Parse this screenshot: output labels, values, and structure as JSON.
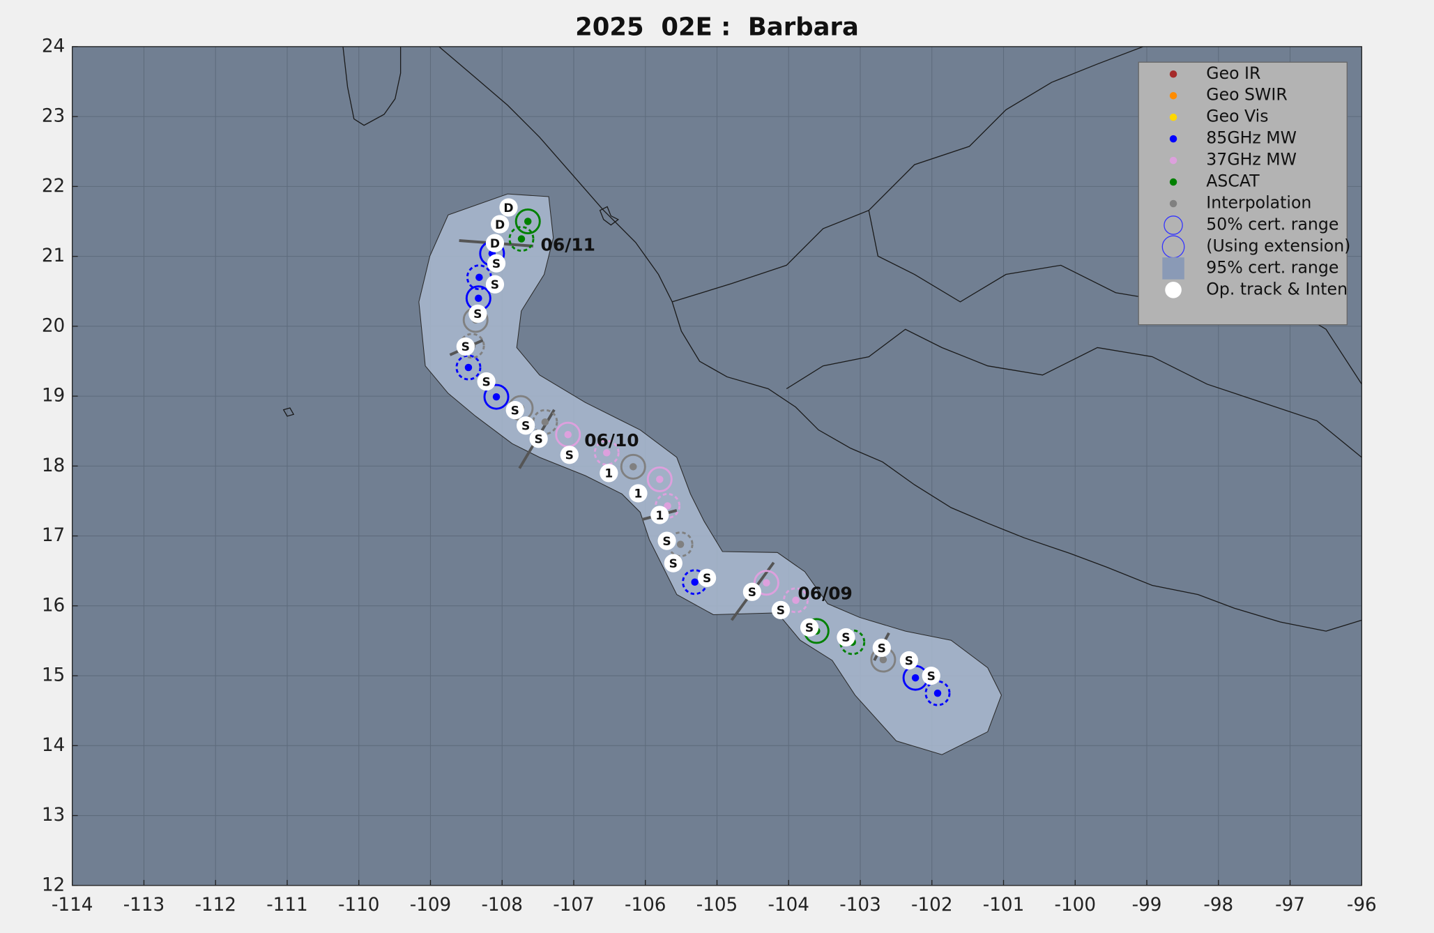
{
  "chart_data": {
    "type": "scatter",
    "title": "2025  02E :  Barbara",
    "xlim": [
      -114,
      -96
    ],
    "ylim": [
      12,
      24
    ],
    "xticks": [
      -114,
      -113,
      -112,
      -111,
      -110,
      -109,
      -108,
      -107,
      -106,
      -105,
      -104,
      -103,
      -102,
      -101,
      -100,
      -99,
      -98,
      -97,
      -96
    ],
    "yticks": [
      12,
      13,
      14,
      15,
      16,
      17,
      18,
      19,
      20,
      21,
      22,
      23,
      24
    ],
    "grid": true,
    "legend": "upper right",
    "series": [
      {
        "name": "Geo IR",
        "color": "#a52a2a",
        "x": [],
        "y": []
      },
      {
        "name": "Geo SWIR",
        "color": "#ff8c00",
        "x": [],
        "y": []
      },
      {
        "name": "Geo Vis",
        "color": "#ffd700",
        "x": [],
        "y": []
      },
      {
        "name": "85GHz MW",
        "color": "#0000ff",
        "x": [
          -108.14,
          -108.32,
          -108.33,
          -108.47,
          -108.08,
          -105.31,
          -102.23,
          -101.92
        ],
        "y": [
          21.04,
          20.7,
          20.4,
          19.41,
          18.99,
          16.34,
          14.97,
          14.75
        ]
      },
      {
        "name": "37GHz MW",
        "color": "#dda0dd",
        "x": [
          -107.08,
          -106.54,
          -105.8,
          -105.69,
          -104.31,
          -103.9
        ],
        "y": [
          18.45,
          18.19,
          17.81,
          17.43,
          16.33,
          16.08
        ]
      },
      {
        "name": "ASCAT",
        "color": "#008000",
        "x": [
          -107.64,
          -107.73,
          -103.61,
          -103.11
        ],
        "y": [
          21.5,
          21.25,
          15.64,
          15.48
        ]
      },
      {
        "name": "Interpolation",
        "color": "#808080",
        "x": [
          -108.37,
          -108.42,
          -107.74,
          -107.4,
          -106.17,
          -105.51,
          -102.68
        ],
        "y": [
          20.09,
          19.72,
          18.83,
          18.63,
          17.99,
          16.88,
          15.23
        ]
      }
    ],
    "legend_extra": [
      "50% cert. range",
      "(Using extension)",
      "95% cert. range",
      "Op. track & Inten"
    ],
    "track": {
      "x": [
        -107.91,
        -108.03,
        -108.1,
        -108.08,
        -108.1,
        -108.34,
        -108.51,
        -108.22,
        -107.82,
        -107.67,
        -107.49,
        -107.06,
        -106.51,
        -106.1,
        -105.8,
        -105.7,
        -105.61,
        -105.14,
        -104.51,
        -104.11,
        -103.71,
        -103.2,
        -102.7,
        -102.32,
        -102.01
      ],
      "y": [
        21.7,
        21.46,
        21.19,
        20.9,
        20.6,
        20.18,
        19.71,
        19.21,
        18.8,
        18.58,
        18.39,
        18.16,
        17.9,
        17.61,
        17.3,
        16.93,
        16.61,
        16.4,
        16.2,
        15.94,
        15.69,
        15.55,
        15.4,
        15.22,
        15.0
      ],
      "labels": [
        "D",
        "D",
        "D",
        "S",
        "S",
        "S",
        "S",
        "S",
        "S",
        "S",
        "S",
        "S",
        "1",
        "1",
        "1",
        "S",
        "S",
        "S",
        "S",
        "S",
        "S",
        "S",
        "S",
        "S",
        "S"
      ]
    },
    "annotations": [
      "06/11",
      "06/10",
      "06/09"
    ]
  }
}
